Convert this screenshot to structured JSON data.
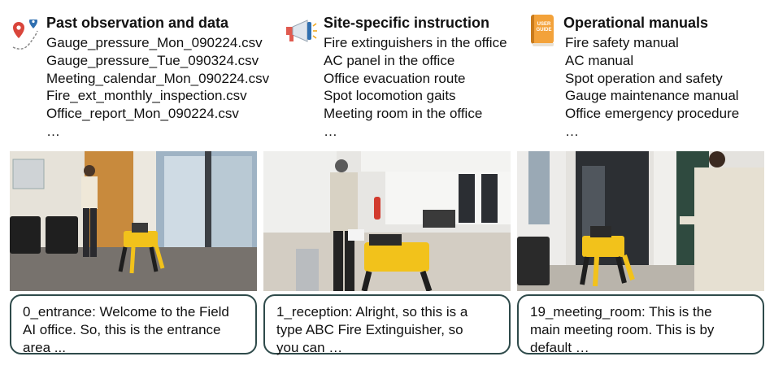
{
  "columns": [
    {
      "title": "Past observation and data",
      "icon": "map-pin-route-icon",
      "items": [
        "Gauge_pressure_Mon_090224.csv",
        "Gauge_pressure_Tue_090324.csv",
        "Meeting_calendar_Mon_090224.csv",
        "Fire_ext_monthly_inspection.csv",
        "Office_report_Mon_090224.csv",
        "…"
      ]
    },
    {
      "title": "Site-specific instruction",
      "icon": "megaphone-icon",
      "items": [
        "Fire extinguishers in the office",
        "AC panel in the office",
        "Office evacuation route",
        "Spot locomotion gaits",
        "Meeting room in the office",
        "…"
      ]
    },
    {
      "title": "Operational manuals",
      "icon": "user-guide-book-icon",
      "icon_text": "USER GUIDE",
      "items": [
        "Fire safety manual",
        "AC manual",
        "Spot operation and safety",
        "Gauge maintenance manual",
        "Office emergency procedure",
        "…"
      ]
    }
  ],
  "captions": [
    {
      "lines": [
        "0_entrance: Welcome to the Field",
        "AI office. So, this is the entrance",
        "area ..."
      ]
    },
    {
      "lines": [
        "1_reception: Alright, so this is a",
        "type ABC Fire Extinguisher, so",
        "you can …"
      ]
    },
    {
      "lines": [
        "19_meeting_room: This is the",
        "main meeting room. This is by",
        "default …"
      ]
    }
  ],
  "colors": {
    "caption_border": "#2e4a4a",
    "robot_yellow": "#f2c21b",
    "pin_red": "#d9453b",
    "pin_blue": "#2f6fb0",
    "book_cover": "#f3a23a"
  }
}
